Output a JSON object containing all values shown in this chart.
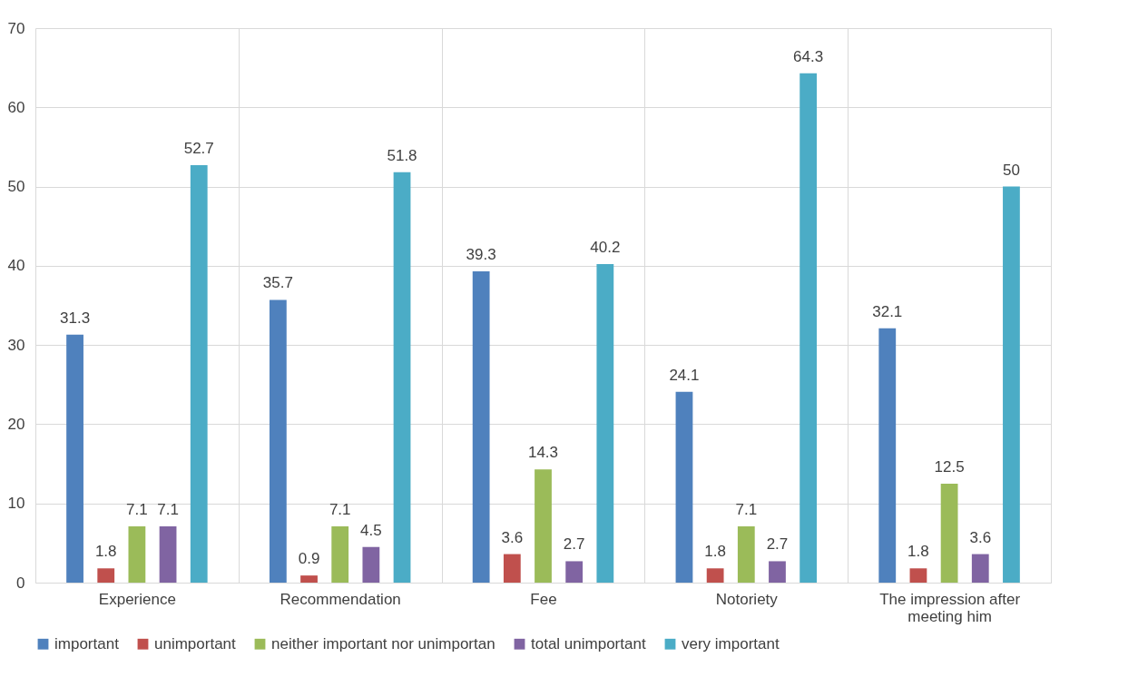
{
  "chart_data": {
    "type": "bar",
    "categories": [
      "Experience",
      "Recommendation",
      "Fee",
      "Notoriety",
      "The impression after meeting him"
    ],
    "series": [
      {
        "name": "important",
        "color": "#4f81bd",
        "values": [
          31.3,
          35.7,
          39.3,
          24.1,
          32.1
        ]
      },
      {
        "name": "unimportant",
        "color": "#c0504d",
        "values": [
          1.8,
          0.9,
          3.6,
          1.8,
          1.8
        ]
      },
      {
        "name": "neither important nor unimportan",
        "color": "#9bbb59",
        "values": [
          7.1,
          7.1,
          14.3,
          7.1,
          12.5
        ]
      },
      {
        "name": "total unimportant",
        "color": "#8064a2",
        "values": [
          7.1,
          4.5,
          2.7,
          2.7,
          3.6
        ]
      },
      {
        "name": "very important",
        "color": "#4bacc6",
        "values": [
          52.7,
          51.8,
          40.2,
          64.3,
          50
        ]
      }
    ],
    "ylim": [
      0,
      70
    ],
    "yticks": [
      0,
      10,
      20,
      30,
      40,
      50,
      60,
      70
    ],
    "grid": true,
    "legend": "bottom",
    "data_labels": true
  }
}
